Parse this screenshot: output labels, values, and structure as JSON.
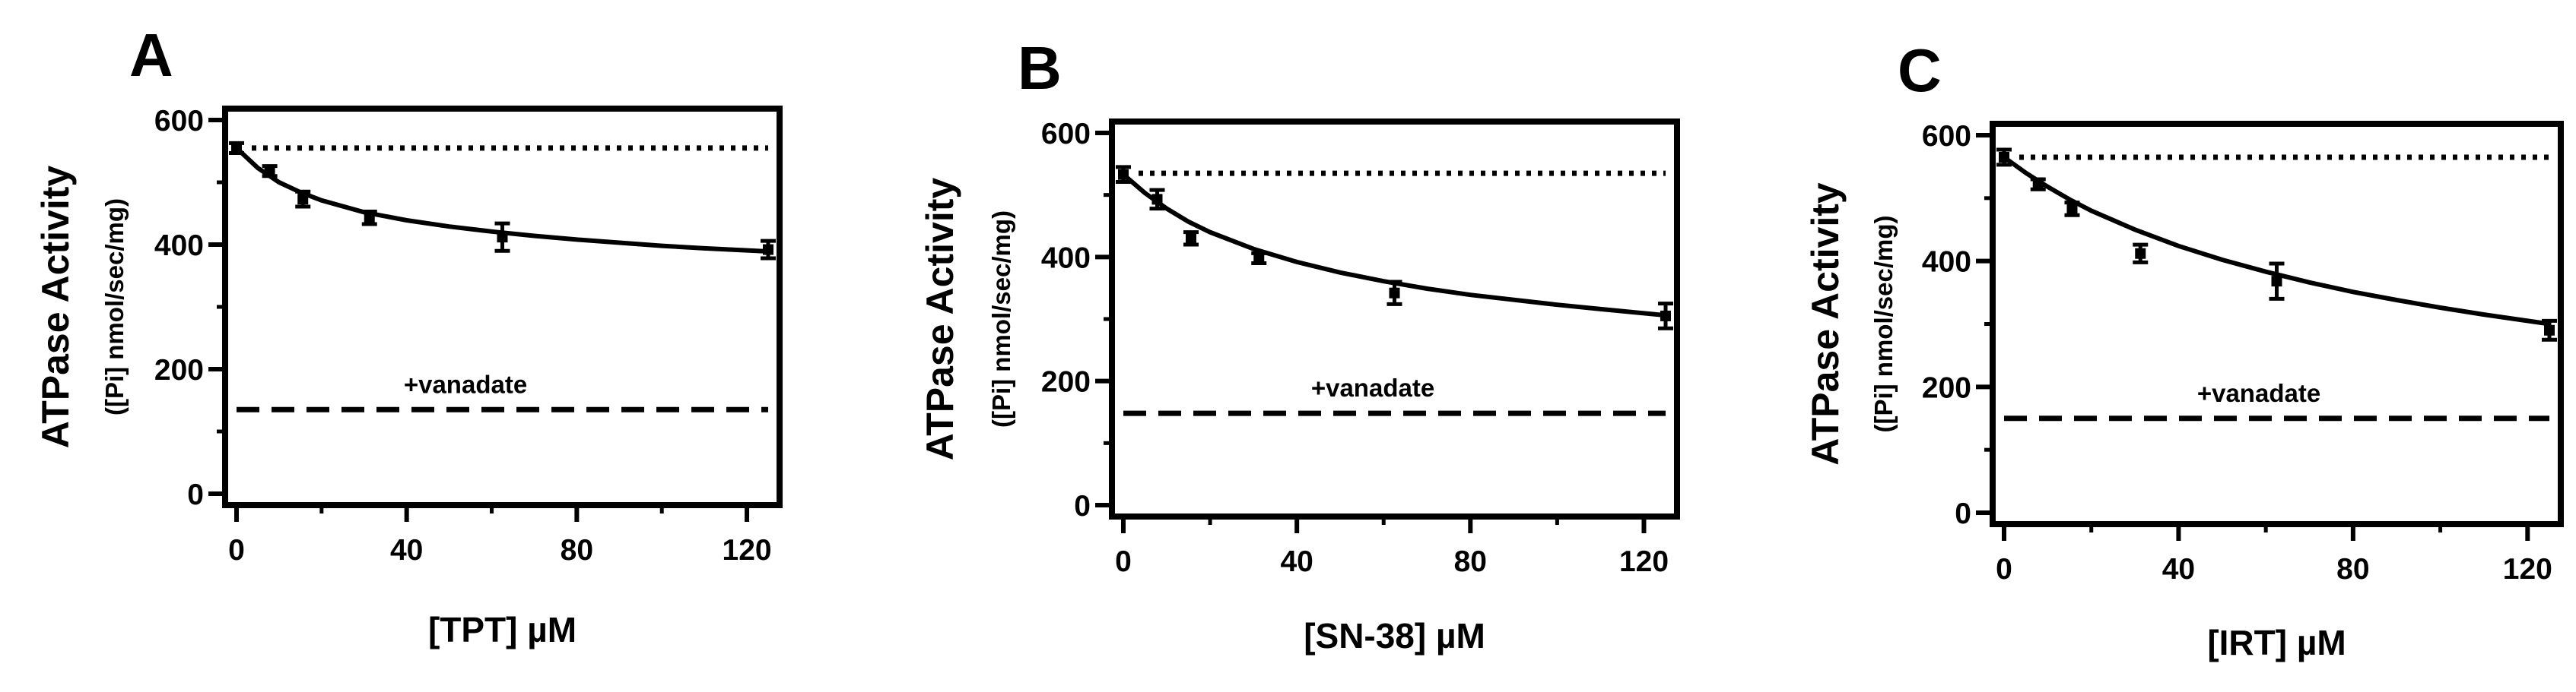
{
  "chart_data": [
    {
      "type": "line",
      "panel_label": "A",
      "ylabel": "ATPase Activity",
      "ylabel_sub": "([Pi] nmol/sec/mg)",
      "xlabel": "[TPT] µM",
      "xlim": [
        0,
        125
      ],
      "ylim": [
        0,
        600
      ],
      "xticks": [
        0,
        40,
        80,
        120
      ],
      "yticks": [
        0,
        200,
        400,
        600
      ],
      "points": {
        "x": [
          0,
          7.8,
          15.6,
          31.25,
          62.5,
          125
        ],
        "y": [
          555,
          518,
          473,
          443,
          412,
          392
        ],
        "err": [
          8,
          8,
          12,
          10,
          22,
          14
        ]
      },
      "fit_curve": {
        "x": [
          0,
          5,
          10,
          15,
          20,
          30,
          40,
          50,
          60,
          70,
          80,
          90,
          100,
          110,
          125
        ],
        "y": [
          555,
          523,
          500,
          484,
          471,
          452,
          439,
          429,
          421,
          414,
          408,
          403,
          398,
          394,
          389
        ]
      },
      "basal_line": 555,
      "vanadate_line": 135,
      "annotation": "+vanadate"
    },
    {
      "type": "line",
      "panel_label": "B",
      "ylabel": "ATPase Activity",
      "ylabel_sub": "([Pi] nmol/sec/mg)",
      "xlabel": "[SN-38] µM",
      "xlim": [
        0,
        125
      ],
      "ylim": [
        0,
        600
      ],
      "xticks": [
        0,
        40,
        80,
        120
      ],
      "yticks": [
        0,
        200,
        400,
        600
      ],
      "points": {
        "x": [
          0,
          7.8,
          15.6,
          31.25,
          62.5,
          125
        ],
        "y": [
          533,
          493,
          430,
          398,
          342,
          305
        ],
        "err": [
          12,
          15,
          10,
          8,
          18,
          20
        ]
      },
      "fit_curve": {
        "x": [
          0,
          5,
          10,
          15,
          20,
          30,
          40,
          50,
          60,
          70,
          80,
          90,
          100,
          110,
          125
        ],
        "y": [
          533,
          503,
          478,
          457,
          440,
          413,
          392,
          375,
          361,
          349,
          339,
          331,
          323,
          316,
          306
        ]
      },
      "basal_line": 535,
      "vanadate_line": 148,
      "annotation": "+vanadate"
    },
    {
      "type": "line",
      "panel_label": "C",
      "ylabel": "ATPase Activity",
      "ylabel_sub": "([Pi] nmol/sec/mg)",
      "xlabel": "[IRT] µM",
      "xlim": [
        0,
        125
      ],
      "ylim": [
        0,
        600
      ],
      "xticks": [
        0,
        40,
        80,
        120
      ],
      "yticks": [
        0,
        200,
        400,
        600
      ],
      "points": {
        "x": [
          0,
          7.8,
          15.6,
          31.25,
          62.5,
          125
        ],
        "y": [
          565,
          522,
          483,
          412,
          368,
          290
        ],
        "err": [
          12,
          8,
          10,
          14,
          28,
          15
        ]
      },
      "fit_curve": {
        "x": [
          0,
          5,
          10,
          15,
          20,
          30,
          40,
          50,
          60,
          70,
          80,
          90,
          100,
          110,
          125
        ],
        "y": [
          565,
          540,
          518,
          498,
          480,
          450,
          424,
          402,
          383,
          366,
          351,
          338,
          326,
          315,
          300
        ]
      },
      "basal_line": 565,
      "vanadate_line": 150,
      "annotation": "+vanadate"
    }
  ]
}
